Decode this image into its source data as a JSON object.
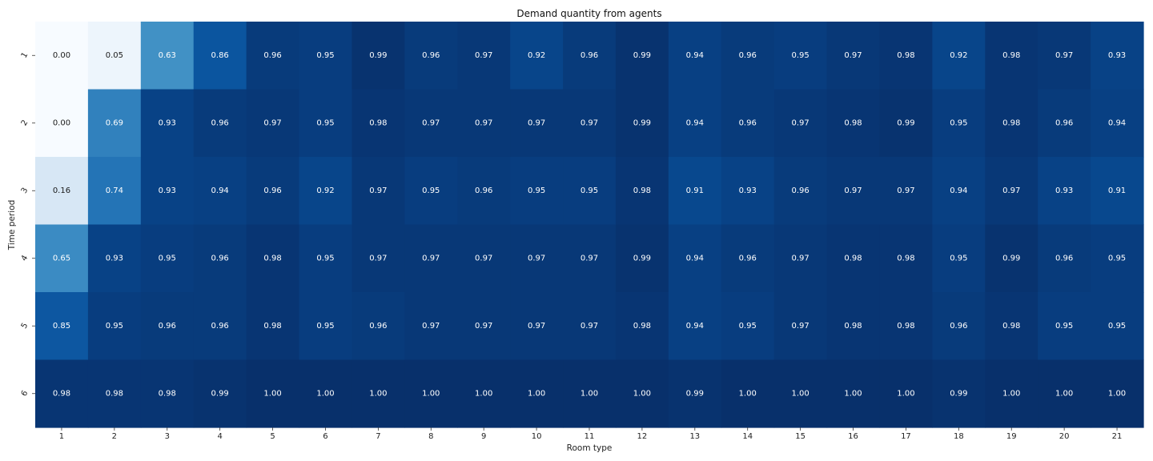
{
  "chart_data": {
    "type": "heatmap",
    "title": "Demand quantity from agents",
    "xlabel": "Room type",
    "ylabel": "Time period",
    "x_labels": [
      "1",
      "2",
      "3",
      "4",
      "5",
      "6",
      "7",
      "8",
      "9",
      "10",
      "11",
      "12",
      "13",
      "14",
      "15",
      "16",
      "17",
      "18",
      "19",
      "20",
      "21"
    ],
    "y_labels": [
      "1",
      "2",
      "3",
      "4",
      "5",
      "6"
    ],
    "value_range": [
      0,
      1
    ],
    "colormap": "Blues",
    "colorbar": false,
    "annotation_format": "0.00",
    "values": [
      [
        0.0,
        0.05,
        0.63,
        0.86,
        0.96,
        0.95,
        0.99,
        0.96,
        0.97,
        0.92,
        0.96,
        0.99,
        0.94,
        0.96,
        0.95,
        0.97,
        0.98,
        0.92,
        0.98,
        0.97,
        0.93
      ],
      [
        0.0,
        0.69,
        0.93,
        0.96,
        0.97,
        0.95,
        0.98,
        0.97,
        0.97,
        0.97,
        0.97,
        0.99,
        0.94,
        0.96,
        0.97,
        0.98,
        0.99,
        0.95,
        0.98,
        0.96,
        0.94
      ],
      [
        0.16,
        0.74,
        0.93,
        0.94,
        0.96,
        0.92,
        0.97,
        0.95,
        0.96,
        0.95,
        0.95,
        0.98,
        0.91,
        0.93,
        0.96,
        0.97,
        0.97,
        0.94,
        0.97,
        0.93,
        0.91
      ],
      [
        0.65,
        0.93,
        0.95,
        0.96,
        0.98,
        0.95,
        0.97,
        0.97,
        0.97,
        0.97,
        0.97,
        0.99,
        0.94,
        0.96,
        0.97,
        0.98,
        0.98,
        0.95,
        0.99,
        0.96,
        0.95
      ],
      [
        0.85,
        0.95,
        0.96,
        0.96,
        0.98,
        0.95,
        0.96,
        0.97,
        0.97,
        0.97,
        0.97,
        0.98,
        0.94,
        0.95,
        0.97,
        0.98,
        0.98,
        0.96,
        0.98,
        0.95,
        0.95
      ],
      [
        0.98,
        0.98,
        0.98,
        0.99,
        1.0,
        1.0,
        1.0,
        1.0,
        1.0,
        1.0,
        1.0,
        1.0,
        0.99,
        1.0,
        1.0,
        1.0,
        1.0,
        0.99,
        1.0,
        1.0,
        1.0
      ]
    ]
  }
}
